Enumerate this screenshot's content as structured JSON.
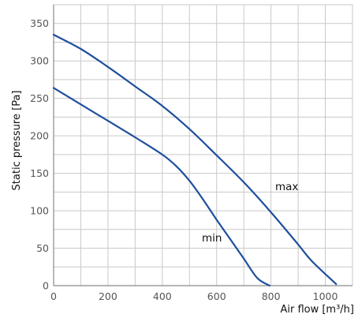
{
  "chart_data": {
    "type": "line",
    "ylabel": "Static pressure [Pa]",
    "xlabel": "Air flow [m³/h]",
    "xlim": [
      0,
      1100
    ],
    "ylim": [
      0,
      375
    ],
    "x_ticks": [
      0,
      200,
      400,
      600,
      800,
      1000
    ],
    "y_ticks": [
      0,
      50,
      100,
      150,
      200,
      250,
      300,
      350
    ],
    "x_gridlines": [
      0,
      100,
      200,
      300,
      400,
      500,
      600,
      700,
      800,
      900,
      1000,
      1100
    ],
    "y_gridlines": [
      0,
      25,
      50,
      75,
      100,
      125,
      150,
      175,
      200,
      225,
      250,
      275,
      300,
      325,
      350,
      375
    ],
    "grid": true,
    "series": [
      {
        "name": "max",
        "color": "#1f4f9c",
        "points": [
          [
            0,
            335
          ],
          [
            100,
            316
          ],
          [
            200,
            292
          ],
          [
            300,
            266
          ],
          [
            400,
            240
          ],
          [
            500,
            209
          ],
          [
            600,
            174
          ],
          [
            700,
            138
          ],
          [
            800,
            98
          ],
          [
            900,
            55
          ],
          [
            950,
            33
          ],
          [
            1040,
            2
          ]
        ]
      },
      {
        "name": "min",
        "color": "#1f4f9c",
        "points": [
          [
            0,
            264
          ],
          [
            100,
            242
          ],
          [
            200,
            220
          ],
          [
            300,
            198
          ],
          [
            400,
            175
          ],
          [
            450,
            160
          ],
          [
            500,
            140
          ],
          [
            550,
            115
          ],
          [
            600,
            88
          ],
          [
            650,
            62
          ],
          [
            700,
            36
          ],
          [
            750,
            10
          ],
          [
            795,
            0
          ]
        ]
      }
    ]
  }
}
